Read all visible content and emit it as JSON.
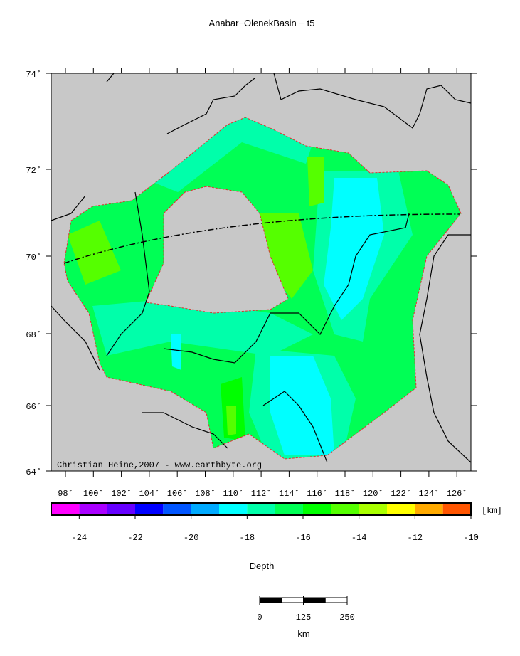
{
  "title": "Anabar−OlenekBasin − t5",
  "credit": "Christian Heine,2007 - www.earthbyte.org",
  "lat_labels": [
    "74˚",
    "72˚",
    "70˚",
    "68˚",
    "66˚",
    "64˚"
  ],
  "lon_labels": [
    "98˚",
    "100˚",
    "102˚",
    "104˚",
    "106˚",
    "108˚",
    "110˚",
    "112˚",
    "114˚",
    "116˚",
    "118˚",
    "120˚",
    "122˚",
    "124˚",
    "126˚"
  ],
  "colorbar": {
    "unit": "[km]",
    "label": "Depth",
    "lim": [
      -25,
      -10
    ],
    "ticks": [
      -24,
      -22,
      -20,
      -18,
      -16,
      -14,
      -12,
      -10
    ],
    "colors": [
      "#ff00ff",
      "#aa00ff",
      "#6600ff",
      "#0000ff",
      "#0055ff",
      "#00aaff",
      "#00ffff",
      "#00ffaa",
      "#00ff55",
      "#00ff00",
      "#55ff00",
      "#aaff00",
      "#ffff00",
      "#ffaa00",
      "#ff5500"
    ]
  },
  "scale_bar": {
    "lim": [
      0,
      250
    ],
    "ticks": [
      0,
      125,
      250
    ],
    "unit": "km"
  }
}
